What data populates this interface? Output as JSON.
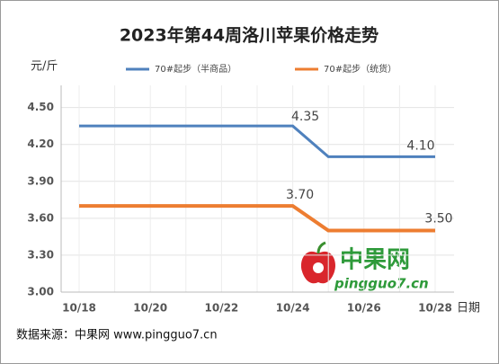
{
  "chart_data": {
    "type": "line",
    "title": "2023年第44周洛川苹果价格走势",
    "y_label": "元/斤",
    "x_label": "日期",
    "source": "数据来源：中果网 www.pingguo7.cn",
    "watermark": {
      "name": "中果网",
      "url": "pingguo7.cn"
    },
    "categories": [
      "10/18",
      null,
      "10/20",
      null,
      "10/22",
      null,
      "10/24",
      null,
      "10/26",
      null,
      "10/28"
    ],
    "series": [
      {
        "name": "70#起步（半商品）",
        "color": "#4f81bd",
        "values": [
          4.35,
          4.35,
          4.35,
          4.35,
          4.35,
          4.35,
          4.35,
          4.1,
          4.1,
          4.1,
          4.1
        ],
        "value_labels": [
          null,
          null,
          null,
          null,
          null,
          null,
          "4.35",
          null,
          null,
          null,
          "4.10"
        ]
      },
      {
        "name": "70#起步（统货）",
        "color": "#ed7d31",
        "values": [
          3.7,
          3.7,
          3.7,
          3.7,
          3.7,
          3.7,
          3.7,
          3.5,
          3.5,
          3.5,
          3.5
        ],
        "value_labels": [
          null,
          null,
          null,
          null,
          null,
          null,
          "3.70",
          null,
          null,
          null,
          "3.50"
        ]
      }
    ],
    "ylim": [
      3.0,
      4.68
    ],
    "yticks": [
      {
        "value": 3.0,
        "label": "3.00"
      },
      {
        "value": 3.3,
        "label": "3.30"
      },
      {
        "value": 3.6,
        "label": "3.60"
      },
      {
        "value": 3.9,
        "label": "3.90"
      },
      {
        "value": 4.2,
        "label": "4.20"
      },
      {
        "value": 4.5,
        "label": "4.50"
      }
    ],
    "grid": true
  }
}
